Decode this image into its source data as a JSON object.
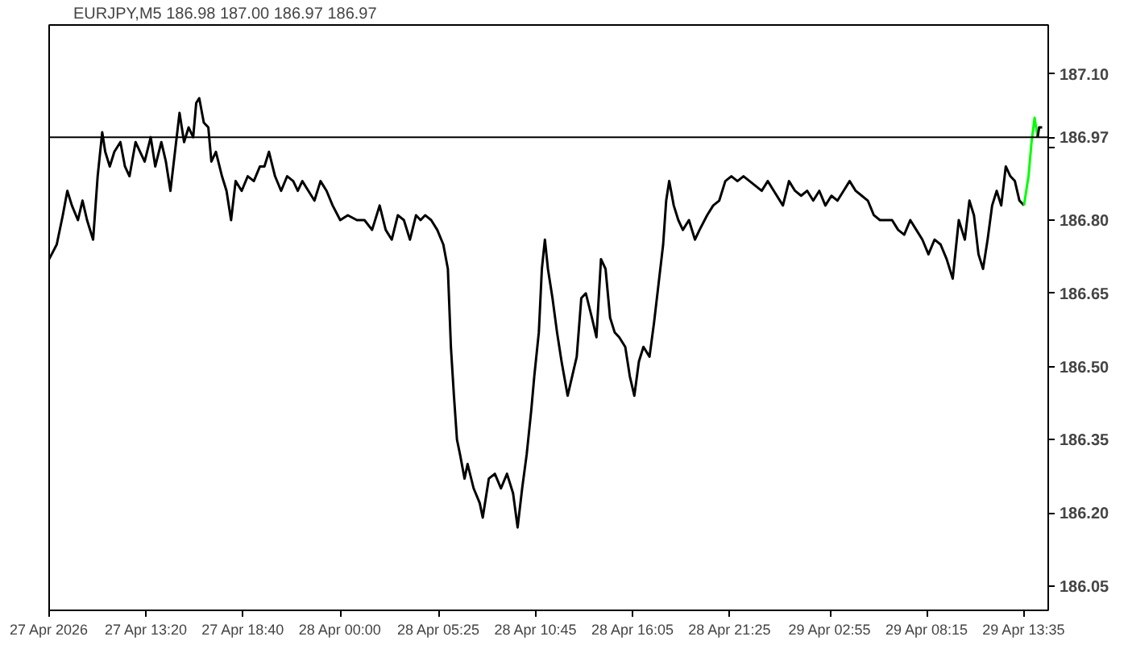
{
  "chart_data": {
    "type": "line",
    "title": "EURJPY,M5  186.98 187.00 186.97 186.97",
    "series": [
      {
        "color": "#000000",
        "x": [
          "2026-04-27T08:00",
          "2026-04-27T08:25",
          "2026-04-27T08:45",
          "2026-04-27T09:00",
          "2026-04-27T09:15",
          "2026-04-27T09:35",
          "2026-04-27T09:50",
          "2026-04-27T10:05",
          "2026-04-27T10:25",
          "2026-04-27T10:40",
          "2026-04-27T10:55",
          "2026-04-27T11:05",
          "2026-04-27T11:20",
          "2026-04-27T11:35",
          "2026-04-27T11:55",
          "2026-04-27T12:10",
          "2026-04-27T12:25",
          "2026-04-27T12:45",
          "2026-04-27T13:00",
          "2026-04-27T13:15",
          "2026-04-27T13:35",
          "2026-04-27T13:50",
          "2026-04-27T14:10",
          "2026-04-27T14:25",
          "2026-04-27T14:40",
          "2026-04-27T14:55",
          "2026-04-27T15:10",
          "2026-04-27T15:25",
          "2026-04-27T15:40",
          "2026-04-27T15:55",
          "2026-04-27T16:05",
          "2026-04-27T16:15",
          "2026-04-27T16:30",
          "2026-04-27T16:45",
          "2026-04-27T16:55",
          "2026-04-27T17:10",
          "2026-04-27T17:30",
          "2026-04-27T17:45",
          "2026-04-27T18:00",
          "2026-04-27T18:15",
          "2026-04-27T18:35",
          "2026-04-27T18:55",
          "2026-04-27T19:15",
          "2026-04-27T19:35",
          "2026-04-27T19:50",
          "2026-04-27T20:05",
          "2026-04-27T20:25",
          "2026-04-27T20:45",
          "2026-04-27T21:05",
          "2026-04-27T21:25",
          "2026-04-27T21:40",
          "2026-04-27T21:55",
          "2026-04-27T22:15",
          "2026-04-27T22:35",
          "2026-04-27T22:55",
          "2026-04-27T23:15",
          "2026-04-27T23:35",
          "2026-04-28T00:00",
          "2026-04-28T00:25",
          "2026-04-28T00:55",
          "2026-04-28T01:20",
          "2026-04-28T01:45",
          "2026-04-28T02:10",
          "2026-04-28T02:30",
          "2026-04-28T02:50",
          "2026-04-28T03:10",
          "2026-04-28T03:30",
          "2026-04-28T03:50",
          "2026-04-28T04:10",
          "2026-04-28T04:25",
          "2026-04-28T04:40",
          "2026-04-28T05:00",
          "2026-04-28T05:20",
          "2026-04-28T05:40",
          "2026-04-28T05:55",
          "2026-04-28T06:05",
          "2026-04-28T06:15",
          "2026-04-28T06:25",
          "2026-04-28T06:35",
          "2026-04-28T06:50",
          "2026-04-28T07:00",
          "2026-04-28T07:20",
          "2026-04-28T07:40",
          "2026-04-28T07:50",
          "2026-04-28T08:10",
          "2026-04-28T08:30",
          "2026-04-28T08:50",
          "2026-04-28T09:10",
          "2026-04-28T09:30",
          "2026-04-28T09:45",
          "2026-04-28T10:00",
          "2026-04-28T10:15",
          "2026-04-28T10:30",
          "2026-04-28T10:40",
          "2026-04-28T10:55",
          "2026-04-28T11:05",
          "2026-04-28T11:15",
          "2026-04-28T11:25",
          "2026-04-28T11:40",
          "2026-04-28T11:55",
          "2026-04-28T12:10",
          "2026-04-28T12:30",
          "2026-04-28T12:45",
          "2026-04-28T13:00",
          "2026-04-28T13:15",
          "2026-04-28T13:30",
          "2026-04-28T13:50",
          "2026-04-28T14:05",
          "2026-04-28T14:20",
          "2026-04-28T14:35",
          "2026-04-28T14:50",
          "2026-04-28T15:05",
          "2026-04-28T15:20",
          "2026-04-28T15:40",
          "2026-04-28T15:55",
          "2026-04-28T16:10",
          "2026-04-28T16:25",
          "2026-04-28T16:40",
          "2026-04-28T17:00",
          "2026-04-28T17:15",
          "2026-04-28T17:30",
          "2026-04-28T17:45",
          "2026-04-28T17:55",
          "2026-04-28T18:05",
          "2026-04-28T18:20",
          "2026-04-28T18:35",
          "2026-04-28T18:50",
          "2026-04-28T19:10",
          "2026-04-28T19:30",
          "2026-04-28T19:45",
          "2026-04-28T20:10",
          "2026-04-28T20:30",
          "2026-04-28T20:50",
          "2026-04-28T21:10",
          "2026-04-28T21:30",
          "2026-04-28T21:50",
          "2026-04-28T22:10",
          "2026-04-28T22:30",
          "2026-04-28T22:50",
          "2026-04-28T23:10",
          "2026-04-28T23:30",
          "2026-04-28T23:50",
          "2026-04-29T00:20",
          "2026-04-29T00:40",
          "2026-04-29T01:00",
          "2026-04-29T01:20",
          "2026-04-29T01:40",
          "2026-04-29T02:00",
          "2026-04-29T02:20",
          "2026-04-29T02:40",
          "2026-04-29T03:00",
          "2026-04-29T03:20",
          "2026-04-29T03:40",
          "2026-04-29T04:00",
          "2026-04-29T04:20",
          "2026-04-29T04:40",
          "2026-04-29T05:00",
          "2026-04-29T05:20",
          "2026-04-29T05:40",
          "2026-04-29T06:00",
          "2026-04-29T06:20",
          "2026-04-29T06:40",
          "2026-04-29T07:00",
          "2026-04-29T07:20",
          "2026-04-29T07:40",
          "2026-04-29T08:00",
          "2026-04-29T08:20",
          "2026-04-29T08:40",
          "2026-04-29T09:00",
          "2026-04-29T09:20",
          "2026-04-29T09:40",
          "2026-04-29T10:00",
          "2026-04-29T10:20",
          "2026-04-29T10:35",
          "2026-04-29T10:50",
          "2026-04-29T11:05",
          "2026-04-29T11:20",
          "2026-04-29T11:35",
          "2026-04-29T11:50",
          "2026-04-29T12:05",
          "2026-04-29T12:20",
          "2026-04-29T12:35",
          "2026-04-29T12:50",
          "2026-04-29T13:05",
          "2026-04-29T13:20",
          "2026-04-29T13:35"
        ],
        "values": [
          186.72,
          186.75,
          186.81,
          186.86,
          186.83,
          186.8,
          186.84,
          186.8,
          186.76,
          186.89,
          186.98,
          186.94,
          186.91,
          186.94,
          186.96,
          186.91,
          186.89,
          186.96,
          186.94,
          186.92,
          186.97,
          186.91,
          186.96,
          186.92,
          186.86,
          186.94,
          187.02,
          186.96,
          186.99,
          186.97,
          187.04,
          187.05,
          187.0,
          186.99,
          186.92,
          186.94,
          186.89,
          186.86,
          186.8,
          186.88,
          186.86,
          186.89,
          186.88,
          186.91,
          186.91,
          186.94,
          186.89,
          186.86,
          186.89,
          186.88,
          186.86,
          186.88,
          186.86,
          186.84,
          186.88,
          186.86,
          186.83,
          186.8,
          186.81,
          186.8,
          186.8,
          186.78,
          186.83,
          186.78,
          186.76,
          186.81,
          186.8,
          186.76,
          186.81,
          186.8,
          186.81,
          186.8,
          186.78,
          186.75,
          186.7,
          186.54,
          186.44,
          186.35,
          186.32,
          186.27,
          186.3,
          186.25,
          186.22,
          186.19,
          186.27,
          186.28,
          186.25,
          186.28,
          186.24,
          186.17,
          186.25,
          186.32,
          186.41,
          186.48,
          186.57,
          186.7,
          186.76,
          186.7,
          186.64,
          186.57,
          186.51,
          186.44,
          186.48,
          186.52,
          186.64,
          186.65,
          186.6,
          186.56,
          186.72,
          186.7,
          186.6,
          186.57,
          186.56,
          186.54,
          186.48,
          186.44,
          186.51,
          186.54,
          186.52,
          186.59,
          186.67,
          186.75,
          186.84,
          186.88,
          186.83,
          186.8,
          186.78,
          186.8,
          186.76,
          186.78,
          186.81,
          186.83,
          186.84,
          186.88,
          186.89,
          186.88,
          186.89,
          186.88,
          186.87,
          186.86,
          186.88,
          186.86,
          186.83,
          186.88,
          186.86,
          186.85,
          186.86,
          186.84,
          186.86,
          186.83,
          186.85,
          186.84,
          186.86,
          186.88,
          186.86,
          186.85,
          186.84,
          186.81,
          186.8,
          186.8,
          186.8,
          186.78,
          186.77,
          186.8,
          186.78,
          186.76,
          186.73,
          186.76,
          186.75,
          186.72,
          186.68,
          186.8,
          186.76,
          186.84,
          186.81,
          186.73,
          186.7,
          186.76,
          186.83,
          186.86,
          186.83,
          186.91,
          186.89,
          186.88,
          186.84,
          186.83
        ]
      },
      {
        "color": "#00ff00",
        "x": [
          "2026-04-29T13:35",
          "2026-04-29T13:50",
          "2026-04-29T14:00",
          "2026-04-29T14:10",
          "2026-04-29T14:20"
        ],
        "values": [
          186.83,
          186.89,
          186.96,
          187.01,
          186.97
        ]
      },
      {
        "color": "#000000",
        "x": [
          "2026-04-29T14:20",
          "2026-04-29T14:25",
          "2026-04-29T14:35"
        ],
        "values": [
          186.97,
          186.99,
          186.99
        ]
      }
    ],
    "xlim": [
      "2026-04-27T08:00",
      "2026-04-29T14:55"
    ],
    "xticks": [
      {
        "value": "2026-04-27T08:00",
        "label": "27 Apr 2026"
      },
      {
        "value": "2026-04-27T13:20",
        "label": "27 Apr 13:20"
      },
      {
        "value": "2026-04-27T18:40",
        "label": "27 Apr 18:40"
      },
      {
        "value": "2026-04-28T00:00",
        "label": "28 Apr 00:00"
      },
      {
        "value": "2026-04-28T05:25",
        "label": "28 Apr 05:25"
      },
      {
        "value": "2026-04-28T10:45",
        "label": "28 Apr 10:45"
      },
      {
        "value": "2026-04-28T16:05",
        "label": "28 Apr 16:05"
      },
      {
        "value": "2026-04-28T21:25",
        "label": "28 Apr 21:25"
      },
      {
        "value": "2026-04-29T02:55",
        "label": "29 Apr 02:55"
      },
      {
        "value": "2026-04-29T08:15",
        "label": "29 Apr 08:15"
      },
      {
        "value": "2026-04-29T13:35",
        "label": "29 Apr 13:35"
      }
    ],
    "ylim": [
      186.0,
      187.2
    ],
    "yticks": [
      {
        "value": 186.05,
        "label": "186.05"
      },
      {
        "value": 186.2,
        "label": "186.20"
      },
      {
        "value": 186.35,
        "label": "186.35"
      },
      {
        "value": 186.5,
        "label": "186.50"
      },
      {
        "value": 186.65,
        "label": "186.65"
      },
      {
        "value": 186.8,
        "label": "186.80"
      },
      {
        "value": 186.95,
        "label": null
      },
      {
        "value": 187.1,
        "label": "187.10"
      }
    ],
    "ref_lines": [
      {
        "axis": "y",
        "value": 186.97,
        "label": "186.97",
        "color": "#000000"
      }
    ],
    "grid": false
  }
}
